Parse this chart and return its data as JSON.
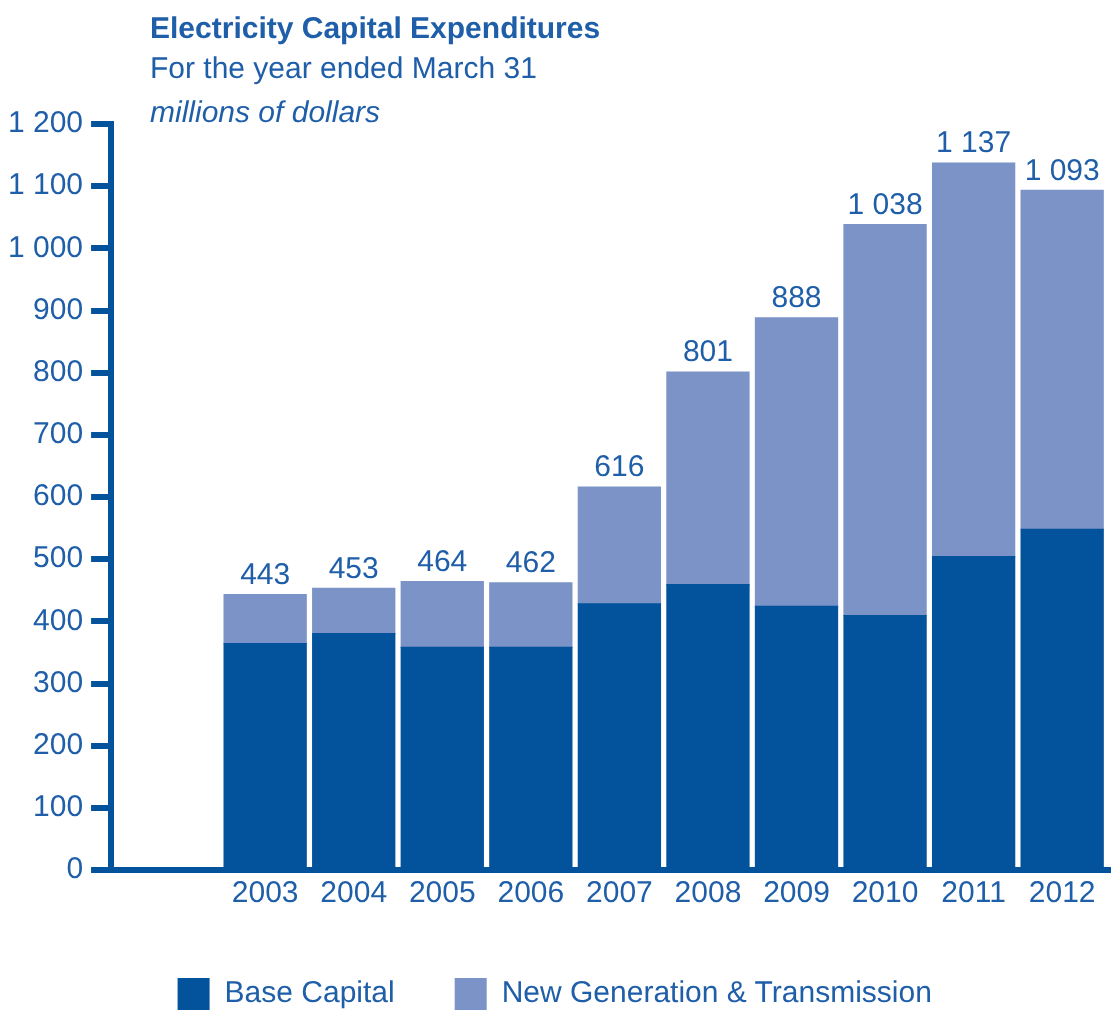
{
  "chart_data": {
    "type": "bar",
    "title": "Electricity Capital Expenditures",
    "subtitle": "For the year ended March 31",
    "ylabel": "millions of dollars",
    "categories": [
      "2003",
      "2004",
      "2005",
      "2006",
      "2007",
      "2008",
      "2009",
      "2010",
      "2011",
      "2012"
    ],
    "stacked": true,
    "series": [
      {
        "name": "Base Capital",
        "color": "#03529c",
        "values": [
          364,
          380,
          358,
          358,
          428,
          459,
          424,
          409,
          504,
          548
        ]
      },
      {
        "name": "New Generation & Transmission",
        "color": "#7b93c6",
        "values": [
          79,
          73,
          106,
          104,
          188,
          342,
          464,
          629,
          633,
          545
        ]
      }
    ],
    "totals": [
      "443",
      "453",
      "464",
      "462",
      "616",
      "801",
      "888",
      "1 038",
      "1 137",
      "1 093"
    ],
    "ylim": [
      0,
      1200
    ],
    "yticks": [
      0,
      100,
      200,
      300,
      400,
      500,
      600,
      700,
      800,
      900,
      {
        "value": 1000,
        "label": "1 000"
      },
      {
        "value": 1100,
        "label": "1 100"
      },
      {
        "value": 1200,
        "label": "1 200"
      }
    ],
    "grid": false,
    "legend": "bottom"
  }
}
